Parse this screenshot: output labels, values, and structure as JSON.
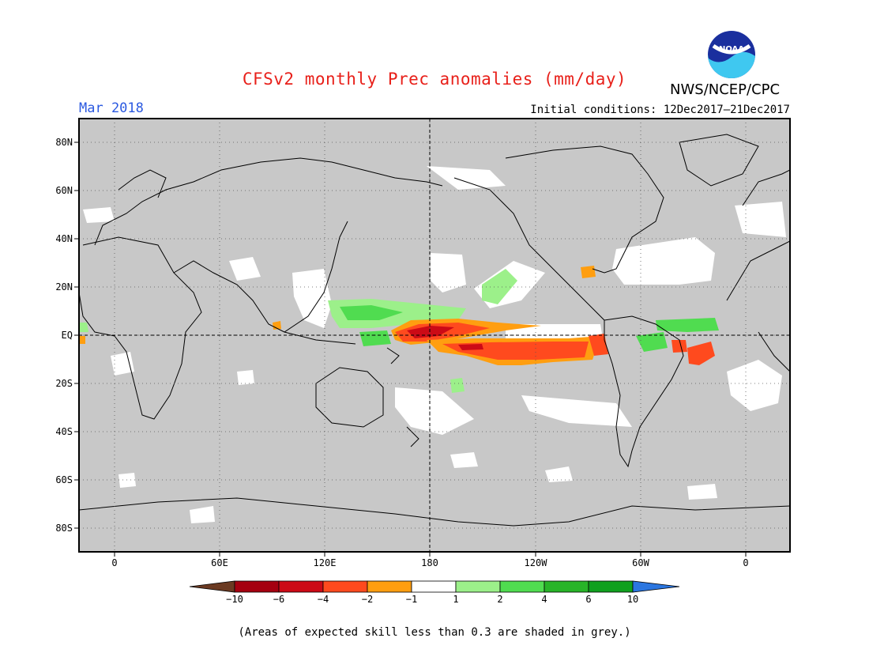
{
  "title": "CFSv2 monthly Prec anomalies (mm/day)",
  "month": "Mar 2018",
  "initial_conditions": "Initial conditions: 12Dec2017–21Dec2017",
  "agency": "NWS/NCEP/CPC",
  "logo_text": "NOAA",
  "lat_labels": [
    "80N",
    "60N",
    "40N",
    "20N",
    "EQ",
    "20S",
    "40S",
    "60S",
    "80S"
  ],
  "lon_labels": [
    "0",
    "60E",
    "120E",
    "180",
    "120W",
    "60W",
    "0"
  ],
  "colorbar": {
    "colors": [
      "#6b3a22",
      "#a50010",
      "#cc0a16",
      "#ff4a1e",
      "#ff9e10",
      "#ffffff",
      "#9cf08a",
      "#50dc50",
      "#28b428",
      "#10a01e",
      "#2b76e0"
    ],
    "tick_labels": [
      "−10",
      "−6",
      "−4",
      "−2",
      "−1",
      "1",
      "2",
      "4",
      "6",
      "10"
    ]
  },
  "footnote": "(Areas of expected skill less than 0.3 are shaded in grey.)",
  "colors": {
    "background_grey": "#c8c8c8",
    "title_red": "#e8201a",
    "month_blue": "#2b59e0"
  }
}
